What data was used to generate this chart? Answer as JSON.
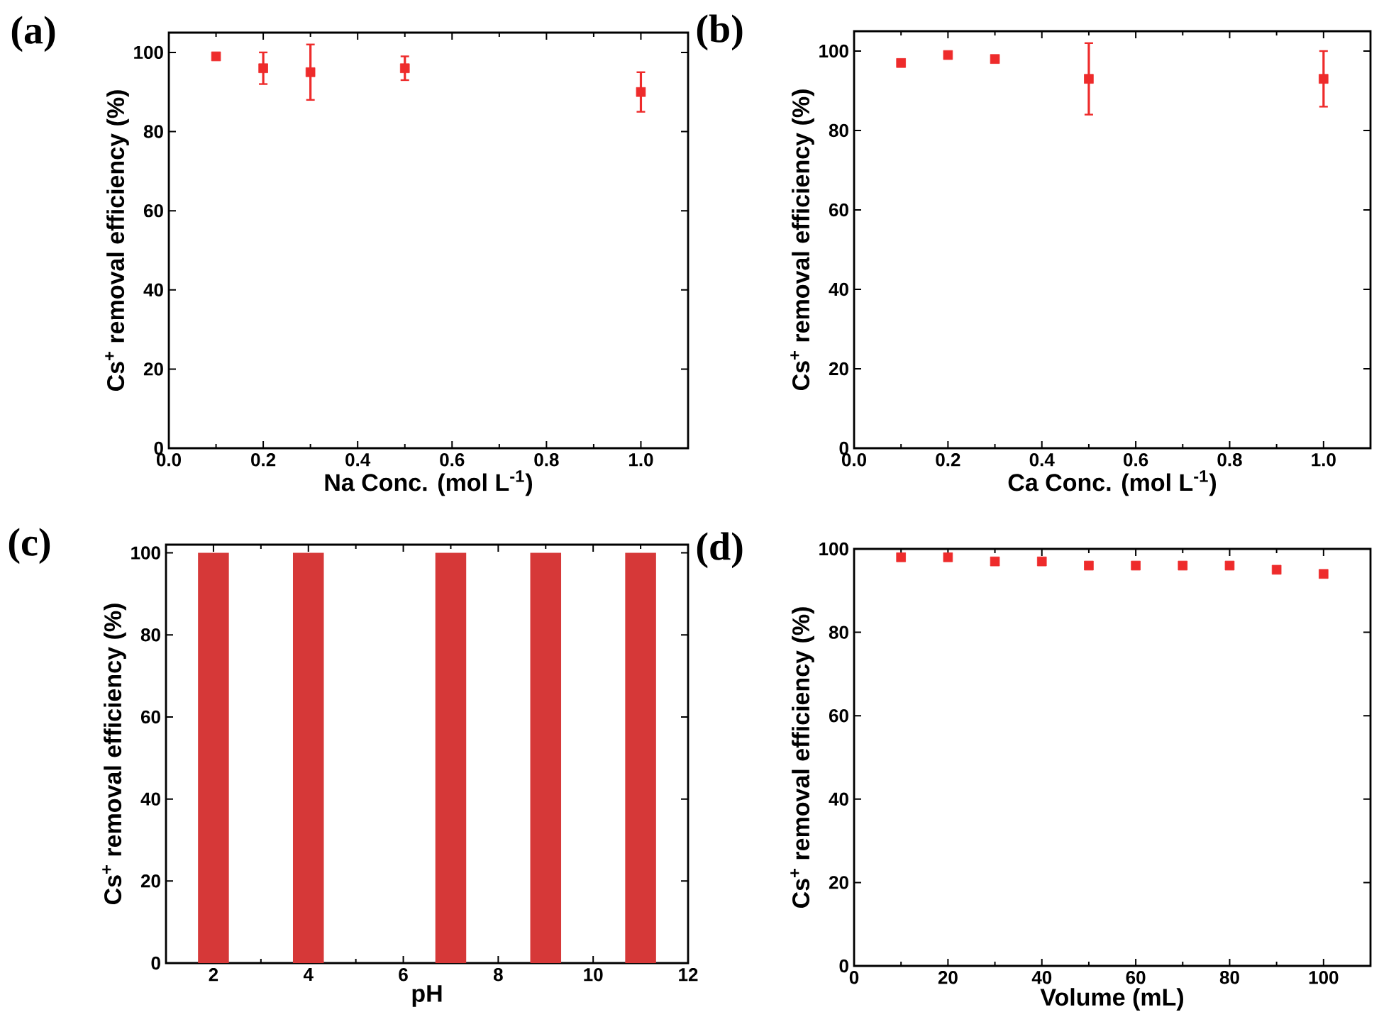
{
  "chart_data": [
    {
      "type": "scatter",
      "title": "(a)",
      "xlabel": "Na Conc. (mol L$^{-1}$)",
      "ylabel": "Cs$^{+}$ removal efficiency (%)",
      "color": "#ee2b2b",
      "marker": "square",
      "x": [
        0.1,
        0.2,
        0.3,
        0.5,
        1.0
      ],
      "values": [
        99,
        96,
        95,
        96,
        90
      ],
      "errors": [
        null,
        4,
        7,
        3,
        5
      ],
      "xlim": [
        0,
        1.1
      ],
      "xticks": [
        {
          "value": 0,
          "label": "0.0"
        },
        {
          "value": 0.2,
          "label": "0.2"
        },
        {
          "value": 0.4,
          "label": "0.4"
        },
        {
          "value": 0.6,
          "label": "0.6"
        },
        {
          "value": 0.8,
          "label": "0.8"
        },
        {
          "value": 1.0,
          "label": "1.0"
        }
      ],
      "ylim": [
        0,
        105
      ],
      "yticks": [
        0,
        20,
        40,
        60,
        80,
        100
      ]
    },
    {
      "type": "scatter",
      "title": "(b)",
      "xlabel": "Ca Conc. (mol L$^{-1}$)",
      "ylabel": "Cs$^{+}$ removal efficiency (%)",
      "color": "#ee2b2b",
      "marker": "square",
      "x": [
        0.1,
        0.2,
        0.3,
        0.5,
        1.0
      ],
      "values": [
        97,
        99,
        98,
        93,
        93
      ],
      "errors": [
        null,
        null,
        null,
        9,
        7
      ],
      "xlim": [
        0,
        1.1
      ],
      "xticks": [
        {
          "value": 0,
          "label": "0.0"
        },
        {
          "value": 0.2,
          "label": "0.2"
        },
        {
          "value": 0.4,
          "label": "0.4"
        },
        {
          "value": 0.6,
          "label": "0.6"
        },
        {
          "value": 0.8,
          "label": "0.8"
        },
        {
          "value": 1.0,
          "label": "1.0"
        }
      ],
      "ylim": [
        0,
        105
      ],
      "yticks": [
        0,
        20,
        40,
        60,
        80,
        100
      ]
    },
    {
      "type": "bar",
      "title": "(c)",
      "xlabel": "pH",
      "ylabel": "Cs$^{+}$ removal efficiency (%)",
      "color": "#d63838",
      "x": [
        2,
        4,
        7,
        9,
        11
      ],
      "values": [
        100,
        100,
        100,
        100,
        100
      ],
      "xlim": [
        1,
        12
      ],
      "xticks": [
        2,
        4,
        6,
        8,
        10,
        12
      ],
      "ylim": [
        0,
        102
      ],
      "yticks": [
        0,
        20,
        40,
        60,
        80,
        100
      ]
    },
    {
      "type": "scatter",
      "title": "(d)",
      "xlabel": "Volume (mL)",
      "ylabel": "Cs$^{+}$ removal efficiency (%)",
      "color": "#ee2b2b",
      "marker": "square",
      "x": [
        10,
        20,
        30,
        40,
        50,
        60,
        70,
        80,
        90,
        100
      ],
      "values": [
        98,
        98,
        97,
        97,
        96,
        96,
        96,
        96,
        95,
        94
      ],
      "xlim": [
        0,
        110
      ],
      "xticks": [
        0,
        20,
        40,
        60,
        80,
        100
      ],
      "ylim": [
        0,
        100
      ],
      "yticks": [
        0,
        20,
        40,
        60,
        80,
        100
      ]
    }
  ]
}
